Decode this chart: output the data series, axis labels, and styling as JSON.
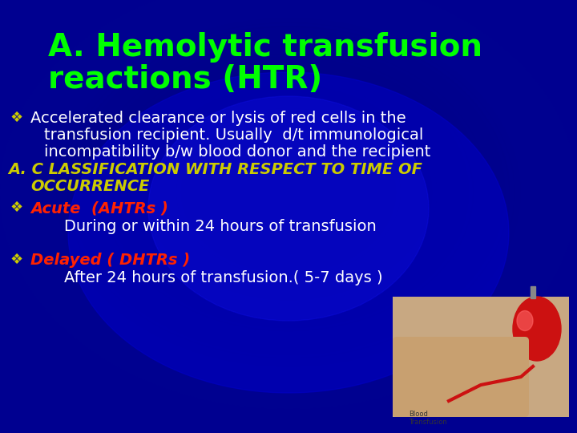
{
  "title_line1": "A. Hemolytic transfusion",
  "title_line2": "reactions (HTR)",
  "title_color": "#00FF00",
  "title_fontsize": 28,
  "bg_color": "#000090",
  "bullet_diamond_color": "#CCCC00",
  "bullet_text_color": "#FFFFFF",
  "orange_text_color": "#CCCC00",
  "red_text_color": "#FF2200",
  "bullet1_line1": "Accelerated clearance or lysis of red cells in the",
  "bullet1_line2": "transfusion recipient. Usually  d/t immunological",
  "bullet1_line3": "incompatibility b/w blood donor and the recipient",
  "classification_line1": "A. C LASSIFICATION WITH RESPECT TO TIME OF",
  "classification_line2": "OCCURRENCE",
  "acute_label": "Acute  (AHTRs )",
  "acute_sub": "During or within 24 hours of transfusion",
  "delayed_label": "Delayed ( DHTRs )",
  "delayed_sub": "After 24 hours of transfusion.( 5-7 days )",
  "body_fontsize": 14,
  "class_fontsize": 14,
  "figwidth": 7.2,
  "figheight": 5.4
}
